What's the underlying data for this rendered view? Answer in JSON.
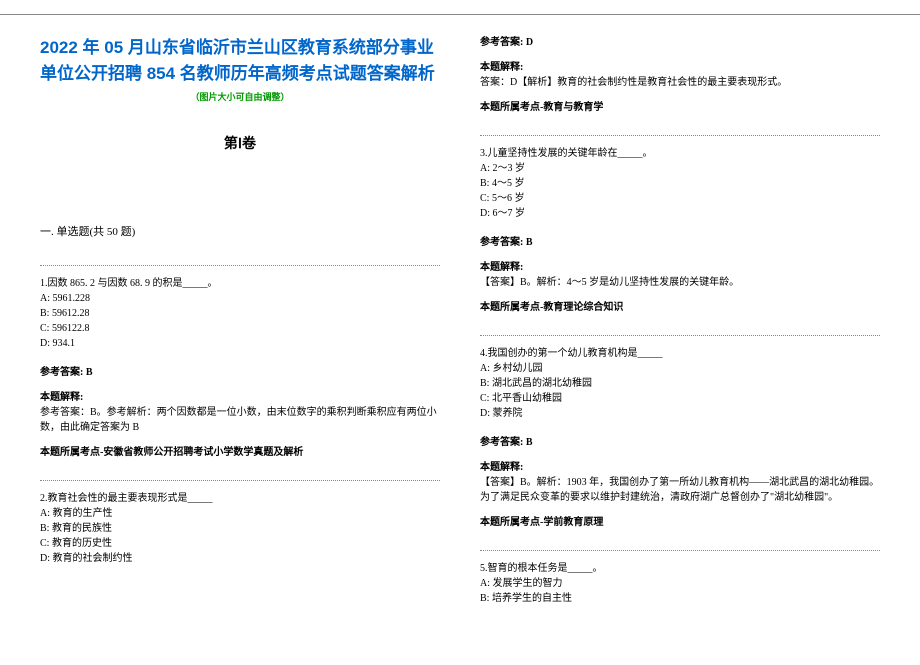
{
  "header": {
    "title": "2022 年 05 月山东省临沂市兰山区教育系统部分事业单位公开招聘 854 名教师历年高频考点试题答案解析",
    "subtitle": "（图片大小可自由调整）",
    "volume": "第Ⅰ卷",
    "section": "一. 单选题(共 50 题)"
  },
  "q1": {
    "stem": "1.因数 865. 2 与因数 68. 9 的积是_____。",
    "optA": "A: 5961.228",
    "optB": "B: 59612.28",
    "optC": "C: 596122.8",
    "optD": "D: 934.1",
    "answer_label": "参考答案: B",
    "analysis_label": "本题解释:",
    "analysis": "参考答案：B。参考解析：两个因数都是一位小数，由末位数字的乘积判断乘积应有两位小数，由此确定答案为 B",
    "topic_label": "本题所属考点-安徽省教师公开招聘考试小学数学真题及解析"
  },
  "q2": {
    "stem": "2.教育社会性的最主要表现形式是_____",
    "optA": "A: 教育的生产性",
    "optB": "B: 教育的民族性",
    "optC": "C: 教育的历史性",
    "optD": "D: 教育的社会制约性",
    "answer_label": "参考答案: D",
    "analysis_label": "本题解释:",
    "analysis": "答案：D【解析】教育的社会制约性是教育社会性的最主要表现形式。",
    "topic_label": "本题所属考点-教育与教育学"
  },
  "q3": {
    "stem": "3.儿童坚持性发展的关键年龄在_____。",
    "optA": "A: 2～3 岁",
    "optB": "B: 4～5 岁",
    "optC": "C: 5～6 岁",
    "optD": "D: 6～7 岁",
    "answer_label": "参考答案: B",
    "analysis_label": "本题解释:",
    "analysis": "【答案】B。解析：4～5 岁是幼儿坚持性发展的关键年龄。",
    "topic_label": "本题所属考点-教育理论综合知识"
  },
  "q4": {
    "stem": "4.我国创办的第一个幼儿教育机构是_____",
    "optA": "A: 乡村幼儿园",
    "optB": "B: 湖北武昌的湖北幼稚园",
    "optC": "C: 北平香山幼稚园",
    "optD": "D: 蒙养院",
    "answer_label": "参考答案: B",
    "analysis_label": "本题解释:",
    "analysis": "【答案】B。解析：1903 年，我国创办了第一所幼儿教育机构——湖北武昌的湖北幼稚园。为了满足民众变革的要求以维护封建统治，清政府湖广总督创办了\"湖北幼稚园\"。",
    "topic_label": "本题所属考点-学前教育原理"
  },
  "q5": {
    "stem": "5.智育的根本任务是_____。",
    "optA": "A: 发展学生的智力",
    "optB": "B: 培养学生的自主性"
  },
  "style": {
    "title_color": "#0066cc",
    "subtitle_color": "#009900",
    "text_color": "#000000",
    "background_color": "#ffffff",
    "title_fontsize": 17,
    "body_fontsize": 10,
    "section_fontsize": 11,
    "volume_fontsize": 14
  }
}
